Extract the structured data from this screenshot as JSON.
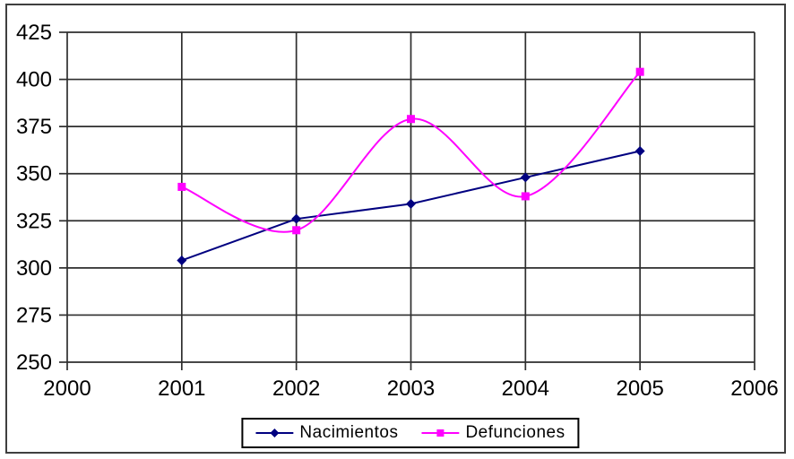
{
  "chart_data": {
    "type": "line",
    "x": [
      2001,
      2002,
      2003,
      2004,
      2005
    ],
    "series": [
      {
        "name": "Nacimientos",
        "values": [
          304,
          326,
          334,
          348,
          362
        ],
        "color": "#000080",
        "marker": "diamond",
        "smooth": false
      },
      {
        "name": "Defunciones",
        "values": [
          343,
          320,
          379,
          338,
          404
        ],
        "color": "#FF00FF",
        "marker": "square",
        "smooth": true
      }
    ],
    "title": "",
    "xlabel": "",
    "ylabel": "",
    "xlim": [
      2000,
      2006
    ],
    "ylim": [
      250,
      425
    ],
    "x_ticks": [
      "2000",
      "2001",
      "2002",
      "2003",
      "2004",
      "2005",
      "2006"
    ],
    "y_ticks": [
      "250",
      "275",
      "300",
      "325",
      "350",
      "375",
      "400",
      "425"
    ],
    "grid": true,
    "grid_color": "#2e2e2e",
    "background_color": "#ffffff",
    "legend_position": "bottom-center"
  }
}
